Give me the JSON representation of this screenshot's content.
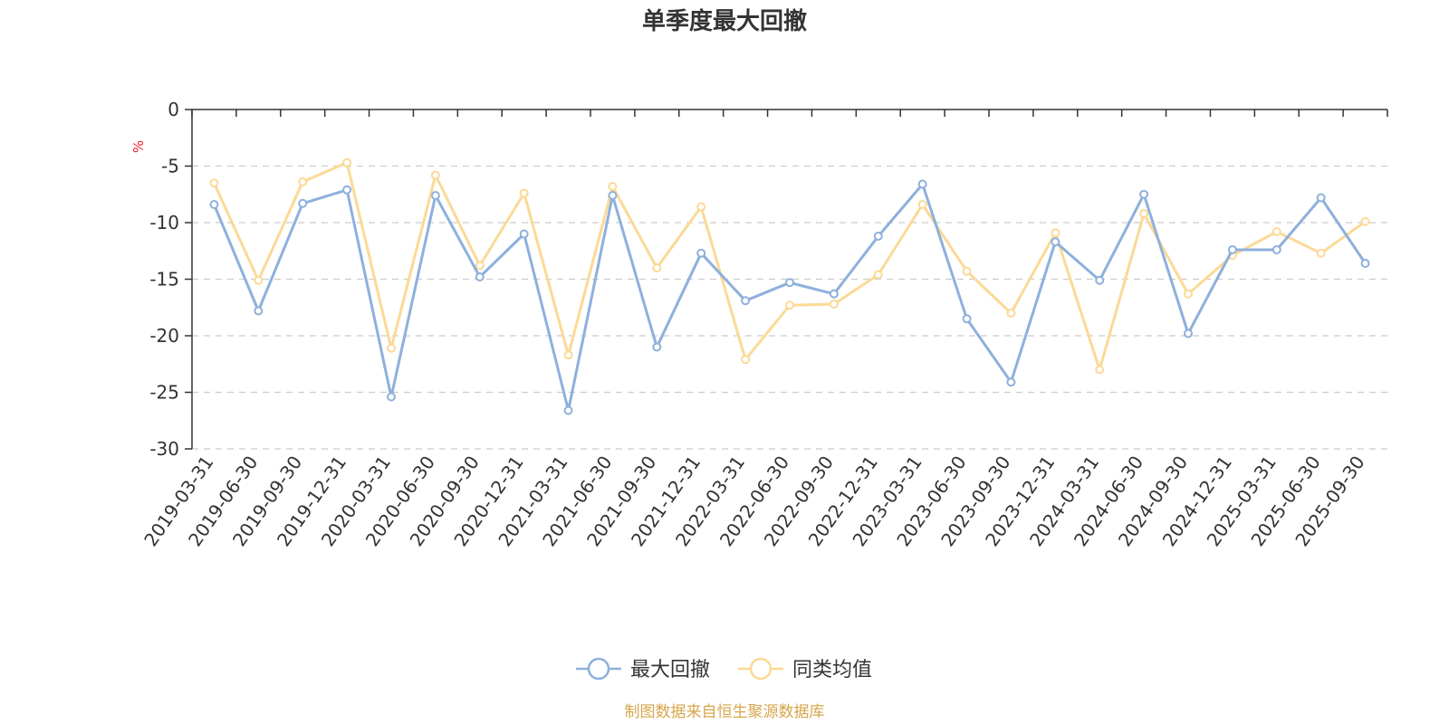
{
  "colors": {
    "series_1": "#8eb0dc",
    "series_2": "#fcd996",
    "unit": "#e8242b",
    "source": "#d6a64a",
    "axis": "#333333",
    "grid": "#cccccc"
  },
  "source_note": "制图数据来自恒生聚源数据库",
  "chart_data": {
    "type": "line",
    "title": "单季度最大回撤",
    "ylabel": "%",
    "xlabel": "",
    "ylim": [
      -30,
      0
    ],
    "yticks": [
      0,
      -5,
      -10,
      -15,
      -20,
      -25,
      -30
    ],
    "grid": "horizontal dashed",
    "legend_position": "bottom-center",
    "categories": [
      "2019-03-31",
      "2019-06-30",
      "2019-09-30",
      "2019-12-31",
      "2020-03-31",
      "2020-06-30",
      "2020-09-30",
      "2020-12-31",
      "2021-03-31",
      "2021-06-30",
      "2021-09-30",
      "2021-12-31",
      "2022-03-31",
      "2022-06-30",
      "2022-09-30",
      "2022-12-31",
      "2023-03-31",
      "2023-06-30",
      "2023-09-30",
      "2023-12-31",
      "2024-03-31",
      "2024-06-30",
      "2024-09-30",
      "2024-12-31",
      "2025-03-31",
      "2025-06-30",
      "2025-09-30"
    ],
    "series": [
      {
        "name": "最大回撤",
        "values": [
          -8.4,
          -17.8,
          -8.3,
          -7.1,
          -25.4,
          -7.6,
          -14.8,
          -11.0,
          -26.6,
          -7.6,
          -21.0,
          -12.7,
          -16.9,
          -15.3,
          -16.3,
          -11.2,
          -6.6,
          -18.5,
          -24.1,
          -11.7,
          -15.1,
          -7.5,
          -19.8,
          -12.4,
          -12.4,
          -7.8,
          -13.6
        ]
      },
      {
        "name": "同类均值",
        "values": [
          -6.5,
          -15.1,
          -6.4,
          -4.7,
          -21.1,
          -5.8,
          -13.8,
          -7.4,
          -21.7,
          -6.8,
          -14.0,
          -8.6,
          -22.1,
          -17.3,
          -17.2,
          -14.6,
          -8.4,
          -14.3,
          -18.0,
          -10.9,
          -23.0,
          -9.2,
          -16.3,
          -12.9,
          -10.8,
          -12.7,
          -9.9
        ]
      }
    ]
  }
}
